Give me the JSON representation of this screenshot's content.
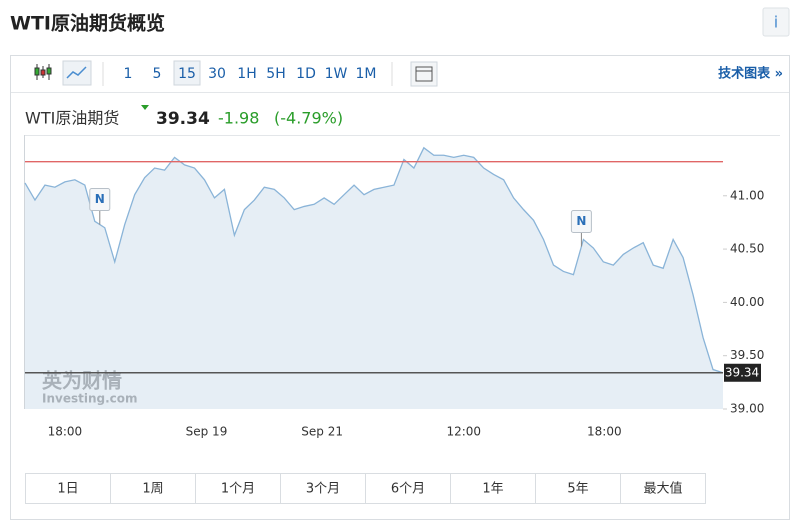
{
  "header": {
    "title": "WTI原油期货概览",
    "info_icon": "i"
  },
  "toolbar": {
    "intervals": [
      "1",
      "5",
      "15",
      "30",
      "1H",
      "5H",
      "1D",
      "1W",
      "1M"
    ],
    "active_interval": "15",
    "technical_chart": "技术图表 »"
  },
  "quote": {
    "name": "WTI原油期货",
    "price": "39.34",
    "change": "-1.98",
    "change_percent": "(-4.79%)"
  },
  "chart_data": {
    "type": "line",
    "values": [
      41.12,
      40.96,
      41.1,
      41.08,
      41.13,
      41.15,
      41.1,
      40.76,
      40.7,
      40.38,
      40.73,
      41.01,
      41.17,
      41.26,
      41.24,
      41.36,
      41.29,
      41.26,
      41.15,
      40.98,
      41.06,
      40.63,
      40.87,
      40.96,
      41.08,
      41.06,
      40.98,
      40.87,
      40.9,
      40.92,
      40.98,
      40.92,
      41.01,
      41.1,
      41.01,
      41.06,
      41.08,
      41.1,
      41.34,
      41.26,
      41.45,
      41.38,
      41.38,
      41.36,
      41.38,
      41.36,
      41.26,
      41.2,
      41.15,
      40.98,
      40.87,
      40.77,
      40.59,
      40.35,
      40.29,
      40.26,
      40.59,
      40.51,
      40.38,
      40.35,
      40.45,
      40.51,
      40.56,
      40.35,
      40.32,
      40.59,
      40.42,
      40.07,
      39.67,
      39.37,
      39.34
    ],
    "color": "#8ab4d8",
    "area_color": "#e6eef5",
    "xlim": [
      0,
      70
    ],
    "xticks": [
      {
        "value": 4,
        "label": "18:00"
      },
      {
        "value": 18.2,
        "label": "Sep 19"
      },
      {
        "value": 29.8,
        "label": "Sep 21"
      },
      {
        "value": 44,
        "label": "12:00"
      },
      {
        "value": 58.1,
        "label": "18:00"
      }
    ],
    "ylim": [
      39,
      41.57
    ],
    "yticks": [
      {
        "value": 39,
        "label": "39.00"
      },
      {
        "value": 39.5,
        "label": "39.50"
      },
      {
        "value": 40,
        "label": "40.00"
      },
      {
        "value": 40.5,
        "label": "40.50"
      },
      {
        "value": 41,
        "label": "41.00"
      }
    ],
    "reference_lines": [
      {
        "value": 41.32,
        "color": "#e06666"
      },
      {
        "value": 39.34,
        "color": "#555555",
        "label": "39.34"
      }
    ],
    "annotations": [
      {
        "text": "N",
        "x": 7.5
      },
      {
        "text": "N",
        "x": 55.8
      }
    ],
    "watermark": [
      "英为财情",
      "Investing.com"
    ]
  },
  "range_buttons": [
    "1日",
    "1周",
    "1个月",
    "3个月",
    "6个月",
    "1年",
    "5年",
    "最大值"
  ]
}
